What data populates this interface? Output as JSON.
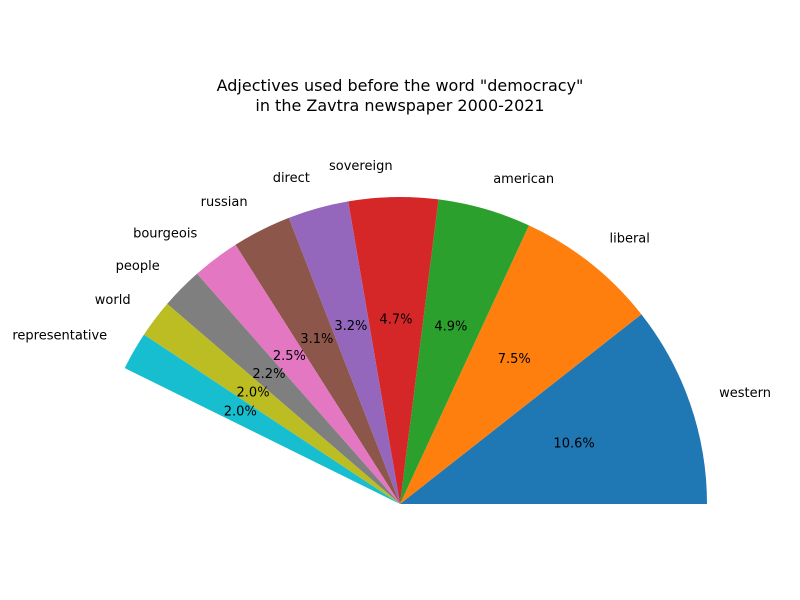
{
  "chart_data": {
    "type": "pie",
    "title_lines": [
      "Adjectives used before the word \"democracy\"",
      "in the Zavtra newspaper 2000-2021"
    ],
    "start_angle_deg": 0,
    "label_order": "counterclockwise",
    "slices": [
      {
        "label": "western",
        "value": 10.6,
        "pct_text": "10.6%",
        "color": "#1f77b4"
      },
      {
        "label": "liberal",
        "value": 7.5,
        "pct_text": "7.5%",
        "color": "#ff7f0e"
      },
      {
        "label": "american",
        "value": 4.9,
        "pct_text": "4.9%",
        "color": "#2ca02c"
      },
      {
        "label": "sovereign",
        "value": 4.7,
        "pct_text": "4.7%",
        "color": "#d62728"
      },
      {
        "label": "direct",
        "value": 3.2,
        "pct_text": "3.2%",
        "color": "#9467bd"
      },
      {
        "label": "russian",
        "value": 3.1,
        "pct_text": "3.1%",
        "color": "#8c564b"
      },
      {
        "label": "bourgeois",
        "value": 2.5,
        "pct_text": "2.5%",
        "color": "#e377c2"
      },
      {
        "label": "people",
        "value": 2.2,
        "pct_text": "2.2%",
        "color": "#7f7f7f"
      },
      {
        "label": "world",
        "value": 2.0,
        "pct_text": "2.0%",
        "color": "#bcbd22"
      },
      {
        "label": "representative",
        "value": 2.0,
        "pct_text": "2.0%",
        "color": "#17becf"
      }
    ]
  }
}
